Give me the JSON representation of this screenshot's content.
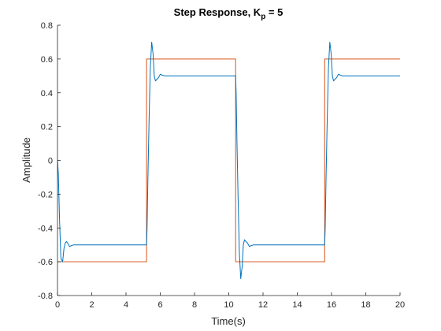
{
  "chart_data": {
    "type": "line",
    "title": {
      "main": "Step Response, K",
      "subscript": "p",
      "suffix": " = 5"
    },
    "xlabel": "Time(s)",
    "ylabel": "Amplitude",
    "xlim": [
      0,
      20
    ],
    "ylim": [
      -0.8,
      0.8
    ],
    "xticks": [
      0,
      2,
      4,
      6,
      8,
      10,
      12,
      14,
      16,
      18,
      20
    ],
    "yticks": [
      -0.8,
      -0.6,
      -0.4,
      -0.2,
      0,
      0.2,
      0.4,
      0.6,
      0.8
    ],
    "xtick_labels": [
      "0",
      "2",
      "4",
      "6",
      "8",
      "10",
      "12",
      "14",
      "16",
      "18",
      "20"
    ],
    "ytick_labels": [
      "-0.8",
      "-0.6",
      "-0.4",
      "-0.2",
      "0",
      "0.2",
      "0.4",
      "0.6",
      "0.8"
    ],
    "grid": false,
    "box": "open-top-right",
    "series": [
      {
        "color": "#D95319",
        "role": "reference",
        "x": [
          0,
          5.2,
          5.2,
          10.4,
          10.4,
          15.6,
          15.6,
          20
        ],
        "y": [
          -0.6,
          -0.6,
          0.6,
          0.6,
          -0.6,
          -0.6,
          0.6,
          0.6
        ]
      },
      {
        "color": "#0072BD",
        "role": "response",
        "x": [
          0,
          0.05,
          0.12,
          0.2,
          0.3,
          0.38,
          0.45,
          0.52,
          0.6,
          0.7,
          0.8,
          0.95,
          1.1,
          1.3,
          1.6,
          2.0,
          5.2,
          5.23,
          5.28,
          5.35,
          5.42,
          5.5,
          5.58,
          5.65,
          5.72,
          5.8,
          5.9,
          6.0,
          6.1,
          6.25,
          6.4,
          6.6,
          6.9,
          7.2,
          10.4,
          10.43,
          10.48,
          10.55,
          10.62,
          10.7,
          10.78,
          10.85,
          10.92,
          11.0,
          11.1,
          11.2,
          11.3,
          11.45,
          11.6,
          11.8,
          12.1,
          12.4,
          15.6,
          15.63,
          15.68,
          15.75,
          15.82,
          15.9,
          15.98,
          16.05,
          16.12,
          16.2,
          16.3,
          16.4,
          16.5,
          16.65,
          16.8,
          17.0,
          17.3,
          17.6,
          20
        ],
        "y": [
          0,
          -0.08,
          -0.35,
          -0.58,
          -0.6,
          -0.52,
          -0.49,
          -0.48,
          -0.49,
          -0.51,
          -0.505,
          -0.5,
          -0.5,
          -0.5,
          -0.5,
          -0.5,
          -0.5,
          -0.4,
          -0.1,
          0.25,
          0.55,
          0.7,
          0.63,
          0.5,
          0.47,
          0.48,
          0.49,
          0.51,
          0.505,
          0.5,
          0.5,
          0.5,
          0.5,
          0.5,
          0.5,
          0.4,
          0.1,
          -0.25,
          -0.55,
          -0.7,
          -0.63,
          -0.5,
          -0.47,
          -0.48,
          -0.49,
          -0.51,
          -0.505,
          -0.5,
          -0.5,
          -0.5,
          -0.5,
          -0.5,
          -0.5,
          -0.4,
          -0.1,
          0.25,
          0.55,
          0.7,
          0.63,
          0.5,
          0.47,
          0.48,
          0.49,
          0.51,
          0.505,
          0.5,
          0.5,
          0.5,
          0.5,
          0.5,
          0.5
        ]
      }
    ]
  }
}
